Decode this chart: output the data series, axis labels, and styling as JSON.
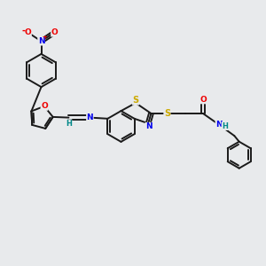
{
  "bg_color": "#e8eaec",
  "bond_color": "#1a1a1a",
  "bond_width": 1.4,
  "atom_colors": {
    "N": "#0000ee",
    "O": "#ee0000",
    "S": "#ccaa00",
    "H": "#008888",
    "C": "#1a1a1a"
  },
  "figsize": [
    3.0,
    3.0
  ],
  "dpi": 100
}
